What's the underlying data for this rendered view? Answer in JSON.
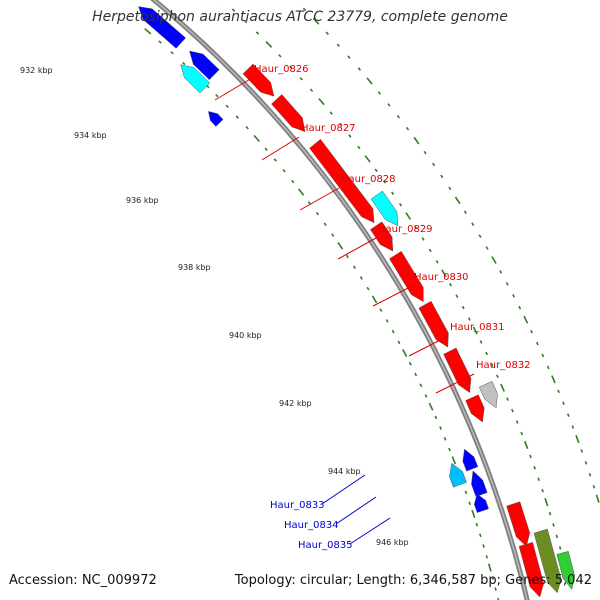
{
  "title": "Herpetosiphon aurantiacus ATCC 23779, complete genome",
  "footer": {
    "accession": "Accession: NC_009972",
    "summary": "Topology: circular; Length: 6,346,587 bp; Genes: 5,042"
  },
  "colors": {
    "forward_cds": "#ff0000",
    "reverse_cds": "#0000ff",
    "forward_other": "#00ffff",
    "reverse_other": "#00bfff",
    "pseudo": "#c0c0c0",
    "rna": "#6b8e23",
    "misc": "#32cd32",
    "backbone": "#808080",
    "gc_dots": "#2e7d1f",
    "forward_label": "#dd0000",
    "reverse_label": "#0000cc"
  },
  "ticks": [
    "932 kbp",
    "934 kbp",
    "936 kbp",
    "938 kbp",
    "940 kbp",
    "942 kbp",
    "944 kbp",
    "946 kbp"
  ],
  "forward_labels": [
    "Haur_0826",
    "Haur_0827",
    "Haur_0828",
    "Haur_0829",
    "Haur_0830",
    "Haur_0831",
    "Haur_0832"
  ],
  "reverse_labels": [
    "Haur_0833",
    "Haur_0834",
    "Haur_0835"
  ]
}
